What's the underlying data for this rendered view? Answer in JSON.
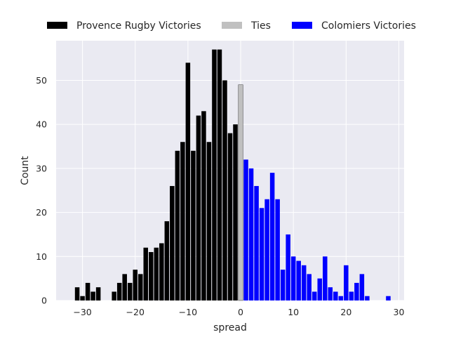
{
  "chart_data": {
    "type": "bar",
    "xlabel": "spread",
    "ylabel": "Count",
    "xlim": [
      -35,
      31
    ],
    "ylim": [
      0,
      59
    ],
    "xticks": [
      -30,
      -20,
      -10,
      0,
      10,
      20,
      30
    ],
    "yticks": [
      0,
      10,
      20,
      30,
      40,
      50
    ],
    "grid": true,
    "legend_position": "top",
    "colors": {
      "background": "#eaeaf2",
      "grid": "#ffffff"
    },
    "series": [
      {
        "name": "Provence Rugby Victories",
        "color": "#000000",
        "x": [
          -31,
          -30,
          -29,
          -28,
          -27,
          -26,
          -25,
          -24,
          -23,
          -22,
          -21,
          -20,
          -19,
          -18,
          -17,
          -16,
          -15,
          -14,
          -13,
          -12,
          -11,
          -10,
          -9,
          -8,
          -7,
          -6,
          -5,
          -4,
          -3,
          -2,
          -1
        ],
        "values": [
          3,
          1,
          4,
          2,
          3,
          0,
          0,
          2,
          4,
          6,
          4,
          7,
          6,
          12,
          11,
          12,
          13,
          18,
          26,
          34,
          36,
          54,
          34,
          42,
          43,
          36,
          57,
          57,
          50,
          38,
          40
        ]
      },
      {
        "name": "Ties",
        "color": "#c0c0c0",
        "x": [
          0
        ],
        "values": [
          49
        ]
      },
      {
        "name": "Colomiers Victories",
        "color": "#0000ff",
        "x": [
          1,
          2,
          3,
          4,
          5,
          6,
          7,
          8,
          9,
          10,
          11,
          12,
          13,
          14,
          15,
          16,
          17,
          18,
          19,
          20,
          21,
          22,
          23,
          24,
          25,
          26,
          27,
          28
        ],
        "values": [
          32,
          30,
          26,
          21,
          23,
          29,
          23,
          7,
          15,
          10,
          9,
          8,
          6,
          2,
          5,
          10,
          3,
          2,
          1,
          8,
          2,
          4,
          6,
          1,
          0,
          0,
          0,
          1
        ]
      }
    ]
  }
}
